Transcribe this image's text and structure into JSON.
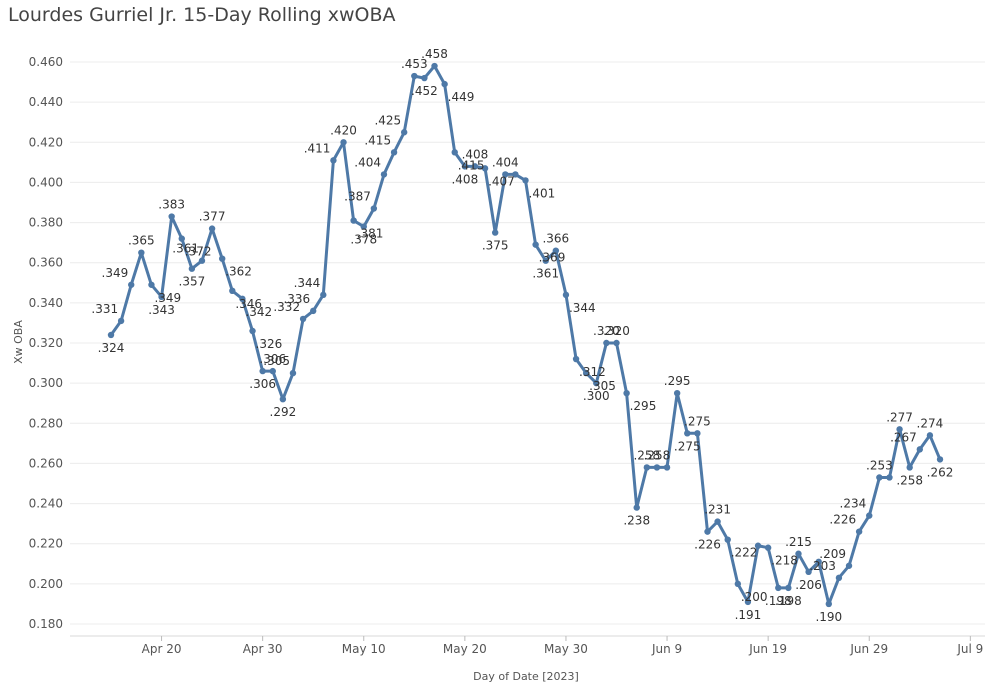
{
  "chart_data": {
    "type": "line",
    "title": "Lourdes Gurriel Jr. 15-Day Rolling xwOBA",
    "xlabel": "Day of Date [2023]",
    "ylabel": "Xw OBA",
    "ylim": [
      0.175,
      0.465
    ],
    "y_ticks": [
      "0.460",
      "0.440",
      "0.420",
      "0.400",
      "0.380",
      "0.360",
      "0.340",
      "0.320",
      "0.300",
      "0.280",
      "0.260",
      "0.240",
      "0.220",
      "0.200",
      "0.180"
    ],
    "x_ticks": [
      "Apr 20",
      "Apr 30",
      "May 10",
      "May 20",
      "May 30",
      "Jun 9",
      "Jun 19",
      "Jun 29",
      "Jul 9"
    ],
    "x_start_date": "2023-04-15",
    "grid": true,
    "color": "#4e79a7",
    "series": [
      {
        "name": "Xw OBA",
        "points": [
          {
            "day": 0,
            "value": 0.324,
            "label": ".324"
          },
          {
            "day": 1,
            "value": 0.331,
            "label": ".331"
          },
          {
            "day": 2,
            "value": 0.349,
            "label": ".349"
          },
          {
            "day": 3,
            "value": 0.365,
            "label": ".365"
          },
          {
            "day": 4,
            "value": 0.349,
            "label": ".349"
          },
          {
            "day": 5,
            "value": 0.343,
            "label": ".343"
          },
          {
            "day": 6,
            "value": 0.383,
            "label": ".383"
          },
          {
            "day": 7,
            "value": 0.372,
            "label": ".372"
          },
          {
            "day": 8,
            "value": 0.357,
            "label": ".357"
          },
          {
            "day": 9,
            "value": 0.361,
            "label": ".361"
          },
          {
            "day": 10,
            "value": 0.377,
            "label": ".377"
          },
          {
            "day": 11,
            "value": 0.362,
            "label": ".362"
          },
          {
            "day": 12,
            "value": 0.346,
            "label": ".346"
          },
          {
            "day": 13,
            "value": 0.342,
            "label": ".342"
          },
          {
            "day": 14,
            "value": 0.326,
            "label": ".326"
          },
          {
            "day": 15,
            "value": 0.306,
            "label": ".306"
          },
          {
            "day": 16,
            "value": 0.306,
            "label": ".306"
          },
          {
            "day": 17,
            "value": 0.292,
            "label": ".292"
          },
          {
            "day": 18,
            "value": 0.305,
            "label": ".305"
          },
          {
            "day": 19,
            "value": 0.332,
            "label": ".332"
          },
          {
            "day": 20,
            "value": 0.336,
            "label": ".336"
          },
          {
            "day": 21,
            "value": 0.344,
            "label": ".344"
          },
          {
            "day": 22,
            "value": 0.411,
            "label": ".411"
          },
          {
            "day": 23,
            "value": 0.42,
            "label": ".420"
          },
          {
            "day": 24,
            "value": 0.381,
            "label": ".381"
          },
          {
            "day": 25,
            "value": 0.378,
            "label": ".378"
          },
          {
            "day": 26,
            "value": 0.387,
            "label": ".387"
          },
          {
            "day": 27,
            "value": 0.404,
            "label": ".404"
          },
          {
            "day": 28,
            "value": 0.415,
            "label": ".415"
          },
          {
            "day": 29,
            "value": 0.425,
            "label": ".425"
          },
          {
            "day": 30,
            "value": 0.453,
            "label": ".453"
          },
          {
            "day": 31,
            "value": 0.452,
            "label": ".452"
          },
          {
            "day": 32,
            "value": 0.458,
            "label": ".458"
          },
          {
            "day": 33,
            "value": 0.449,
            "label": ".449"
          },
          {
            "day": 34,
            "value": 0.415,
            "label": ".415"
          },
          {
            "day": 35,
            "value": 0.408,
            "label": ".408"
          },
          {
            "day": 36,
            "value": 0.408,
            "label": ".408"
          },
          {
            "day": 37,
            "value": 0.407,
            "label": ".407"
          },
          {
            "day": 38,
            "value": 0.375,
            "label": ".375"
          },
          {
            "day": 39,
            "value": 0.404,
            "label": ".404"
          },
          {
            "day": 40,
            "value": 0.404,
            "label": ""
          },
          {
            "day": 41,
            "value": 0.401,
            "label": ".401"
          },
          {
            "day": 42,
            "value": 0.369,
            "label": ".369"
          },
          {
            "day": 43,
            "value": 0.361,
            "label": ".361"
          },
          {
            "day": 44,
            "value": 0.366,
            "label": ".366"
          },
          {
            "day": 45,
            "value": 0.344,
            "label": ".344"
          },
          {
            "day": 46,
            "value": 0.312,
            "label": ".312"
          },
          {
            "day": 47,
            "value": 0.305,
            "label": ".305"
          },
          {
            "day": 48,
            "value": 0.3,
            "label": ".300"
          },
          {
            "day": 49,
            "value": 0.32,
            "label": ".320"
          },
          {
            "day": 50,
            "value": 0.32,
            "label": ".320"
          },
          {
            "day": 51,
            "value": 0.295,
            "label": ".295"
          },
          {
            "day": 52,
            "value": 0.238,
            "label": ".238"
          },
          {
            "day": 53,
            "value": 0.258,
            "label": ".258"
          },
          {
            "day": 54,
            "value": 0.258,
            "label": ".258"
          },
          {
            "day": 55,
            "value": 0.258,
            "label": ""
          },
          {
            "day": 56,
            "value": 0.295,
            "label": ".295"
          },
          {
            "day": 57,
            "value": 0.275,
            "label": ".275"
          },
          {
            "day": 58,
            "value": 0.275,
            "label": ".275"
          },
          {
            "day": 59,
            "value": 0.226,
            "label": ".226"
          },
          {
            "day": 60,
            "value": 0.231,
            "label": ".231"
          },
          {
            "day": 61,
            "value": 0.222,
            "label": ".222"
          },
          {
            "day": 62,
            "value": 0.2,
            "label": ".200"
          },
          {
            "day": 63,
            "value": 0.191,
            "label": ".191"
          },
          {
            "day": 64,
            "value": 0.219,
            "label": ""
          },
          {
            "day": 65,
            "value": 0.218,
            "label": ".218"
          },
          {
            "day": 66,
            "value": 0.198,
            "label": ".198"
          },
          {
            "day": 67,
            "value": 0.198,
            "label": ".198"
          },
          {
            "day": 68,
            "value": 0.215,
            "label": ".215"
          },
          {
            "day": 69,
            "value": 0.206,
            "label": ".206"
          },
          {
            "day": 70,
            "value": 0.211,
            "label": ""
          },
          {
            "day": 71,
            "value": 0.19,
            "label": ".190"
          },
          {
            "day": 72,
            "value": 0.203,
            "label": ".203"
          },
          {
            "day": 73,
            "value": 0.209,
            "label": ".209"
          },
          {
            "day": 74,
            "value": 0.226,
            "label": ".226"
          },
          {
            "day": 75,
            "value": 0.234,
            "label": ".234"
          },
          {
            "day": 76,
            "value": 0.253,
            "label": ".253"
          },
          {
            "day": 77,
            "value": 0.253,
            "label": ""
          },
          {
            "day": 78,
            "value": 0.277,
            "label": ".277"
          },
          {
            "day": 79,
            "value": 0.258,
            "label": ".258"
          },
          {
            "day": 80,
            "value": 0.267,
            "label": ".267"
          },
          {
            "day": 81,
            "value": 0.274,
            "label": ".274"
          },
          {
            "day": 82,
            "value": 0.262,
            "label": ".262"
          }
        ]
      }
    ]
  }
}
